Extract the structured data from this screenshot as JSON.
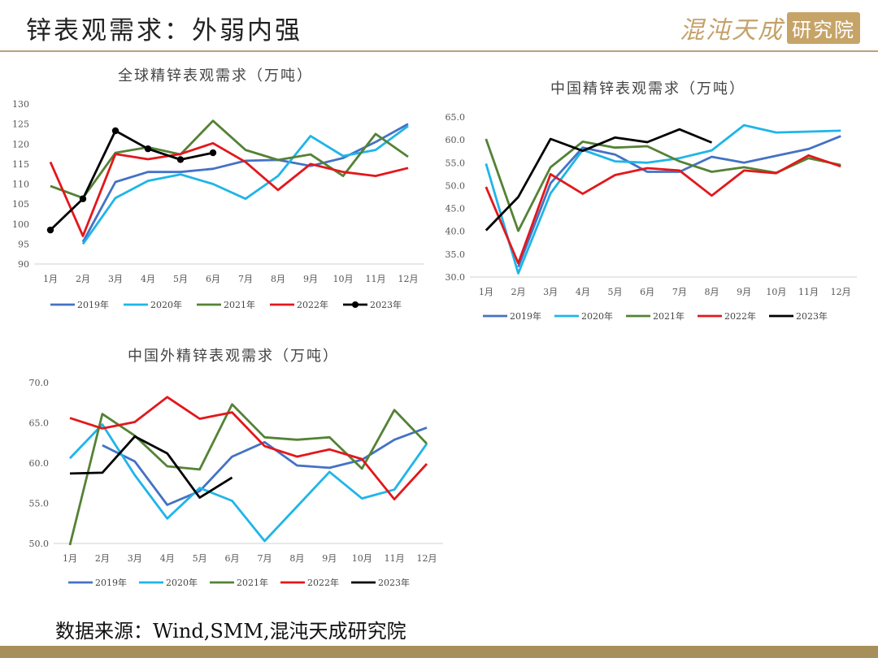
{
  "slide": {
    "title": "锌表观需求：外弱内强",
    "logo_text": "混沌天成",
    "logo_box": "研究院",
    "source": "数据来源：Wind,SMM,混沌天成研究院"
  },
  "colors": {
    "s2019": "#4472C4",
    "s2020": "#1FB5E8",
    "s2021": "#548235",
    "s2022": "#E3171B",
    "s2023": "#000000",
    "axis": "#d0d0d0",
    "rule": "#b7a27d",
    "footer": "#a88f5a"
  },
  "chart_data": [
    {
      "type": "line",
      "title": "全球精锌表观需求（万吨）",
      "categories": [
        "1月",
        "2月",
        "3月",
        "4月",
        "5月",
        "6月",
        "7月",
        "8月",
        "9月",
        "10月",
        "11月",
        "12月"
      ],
      "ylim": [
        90,
        130
      ],
      "yticks": [
        "90",
        "95",
        "100",
        "105",
        "110",
        "115",
        "120",
        "125",
        "130"
      ],
      "grid": false,
      "legend": "bottom",
      "series": [
        {
          "name": "2019年",
          "color": "#4472C4",
          "markers": false,
          "values": [
            null,
            95.5,
            110.5,
            113,
            113,
            113.8,
            115.8,
            116,
            114.5,
            116.5,
            120.5,
            125
          ]
        },
        {
          "name": "2020年",
          "color": "#1FB5E8",
          "markers": false,
          "values": [
            null,
            95,
            106.5,
            110.8,
            112.4,
            110,
            106.3,
            112,
            122,
            117,
            118.5,
            124.5
          ]
        },
        {
          "name": "2021年",
          "color": "#548235",
          "markers": false,
          "values": [
            109.5,
            106.5,
            117.8,
            119.2,
            117.4,
            125.8,
            118.5,
            116,
            117.4,
            112,
            122.5,
            116.8
          ]
        },
        {
          "name": "2022年",
          "color": "#E3171B",
          "markers": false,
          "values": [
            115.5,
            97,
            117.5,
            116.2,
            117.5,
            120.2,
            115.5,
            108.5,
            115,
            113,
            112,
            114
          ]
        },
        {
          "name": "2023年",
          "color": "#000000",
          "markers": true,
          "values": [
            98.5,
            106.3,
            123.3,
            118.8,
            116.1,
            117.8,
            null,
            null,
            null,
            null,
            null,
            null
          ]
        }
      ]
    },
    {
      "type": "line",
      "title": "中国精锌表观需求（万吨）",
      "categories": [
        "1月",
        "2月",
        "3月",
        "4月",
        "5月",
        "6月",
        "7月",
        "8月",
        "9月",
        "10月",
        "11月",
        "12月"
      ],
      "ylim": [
        30,
        65
      ],
      "yticks": [
        "30.0",
        "35.0",
        "40.0",
        "45.0",
        "50.0",
        "55.0",
        "60.0",
        "65.0"
      ],
      "grid": false,
      "legend": "bottom",
      "series": [
        {
          "name": "2019年",
          "color": "#4472C4",
          "markers": false,
          "values": [
            null,
            32.2,
            50.5,
            58.3,
            56.8,
            53,
            53,
            56.3,
            55,
            56.5,
            58,
            60.8
          ]
        },
        {
          "name": "2020年",
          "color": "#1FB5E8",
          "markers": false,
          "values": [
            54.8,
            30.8,
            48.3,
            57.8,
            55.3,
            55,
            56,
            57.7,
            63.2,
            61.6,
            61.8,
            62
          ]
        },
        {
          "name": "2021年",
          "color": "#548235",
          "markers": false,
          "values": [
            60.2,
            40.1,
            54,
            59.6,
            58.3,
            58.6,
            55.3,
            53,
            54,
            52.8,
            56,
            54.5
          ]
        },
        {
          "name": "2022年",
          "color": "#E3171B",
          "markers": false,
          "values": [
            49.7,
            33,
            52.5,
            48.2,
            52.3,
            53.8,
            53.3,
            47.8,
            53.3,
            52.7,
            56.6,
            54.2
          ]
        },
        {
          "name": "2023年",
          "color": "#000000",
          "markers": false,
          "values": [
            40.2,
            47.5,
            60.2,
            57.6,
            60.5,
            59.5,
            62.3,
            59.4,
            null,
            null,
            null,
            null
          ]
        }
      ]
    },
    {
      "type": "line",
      "title": "中国外精锌表观需求（万吨）",
      "categories": [
        "1月",
        "2月",
        "3月",
        "4月",
        "5月",
        "6月",
        "7月",
        "8月",
        "9月",
        "10月",
        "11月",
        "12月"
      ],
      "ylim": [
        50,
        70
      ],
      "yticks": [
        "50.0",
        "55.0",
        "60.0",
        "65.0",
        "70.0"
      ],
      "grid": false,
      "legend": "bottom",
      "series": [
        {
          "name": "2019年",
          "color": "#4472C4",
          "markers": false,
          "values": [
            null,
            62.2,
            60.2,
            54.8,
            56.5,
            60.8,
            62.6,
            59.7,
            59.4,
            60.4,
            62.9,
            64.4
          ]
        },
        {
          "name": "2020年",
          "color": "#1FB5E8",
          "markers": false,
          "values": [
            60.6,
            64.8,
            58.5,
            53.1,
            56.9,
            55.3,
            50.3,
            54.6,
            58.9,
            55.6,
            56.7,
            62.4
          ]
        },
        {
          "name": "2021年",
          "color": "#548235",
          "markers": false,
          "values": [
            49.8,
            66.1,
            63.4,
            59.6,
            59.2,
            67.3,
            63.2,
            62.9,
            63.2,
            59.3,
            66.6,
            62.4
          ]
        },
        {
          "name": "2022年",
          "color": "#E3171B",
          "markers": false,
          "values": [
            65.6,
            64.3,
            65.1,
            68.2,
            65.5,
            66.3,
            62.1,
            60.8,
            61.7,
            60.5,
            55.5,
            59.9
          ]
        },
        {
          "name": "2023年",
          "color": "#000000",
          "markers": false,
          "values": [
            58.7,
            58.8,
            63.3,
            61.2,
            55.7,
            58.2,
            null,
            null,
            null,
            null,
            null,
            null
          ]
        }
      ]
    }
  ]
}
